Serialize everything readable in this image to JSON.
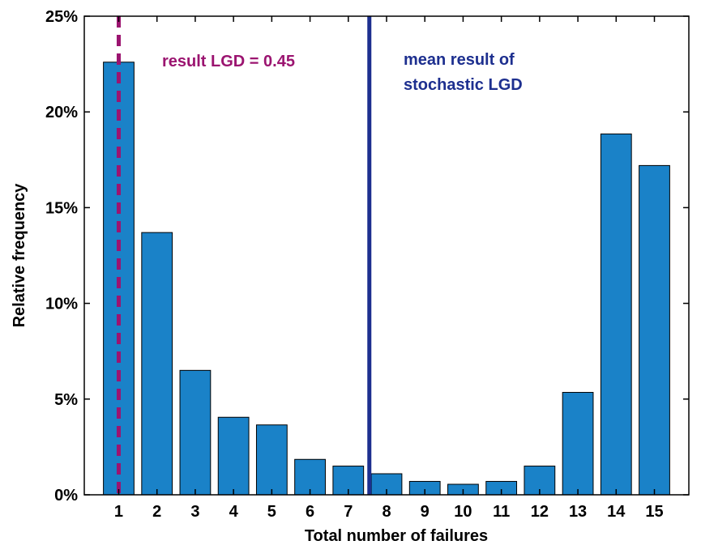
{
  "chart_data": {
    "type": "bar",
    "xlabel": "Total number of failures",
    "ylabel": "Relative frequency",
    "categories": [
      "1",
      "2",
      "3",
      "4",
      "5",
      "6",
      "7",
      "8",
      "9",
      "10",
      "11",
      "12",
      "13",
      "14",
      "15"
    ],
    "values": [
      22.6,
      13.7,
      6.5,
      4.05,
      3.65,
      1.85,
      1.5,
      1.1,
      0.7,
      0.55,
      0.7,
      1.5,
      5.35,
      18.85,
      17.2
    ],
    "y_unit": "%",
    "ylim": [
      0,
      25
    ],
    "yticks": [
      0,
      5,
      10,
      15,
      20,
      25
    ],
    "ytick_labels": [
      "0%",
      "5%",
      "10%",
      "15%",
      "20%",
      "25%"
    ],
    "xlim": [
      0.1,
      15.9
    ],
    "grid": false,
    "bar_color": "#1a82c8",
    "reference_lines": [
      {
        "x": 1,
        "style": "dashed",
        "color": "#9b1470",
        "label": "result LGD = 0.45"
      },
      {
        "x": 7.55,
        "style": "solid",
        "color": "#1d2f8f",
        "label_lines": [
          "mean result of",
          "stochastic LGD"
        ]
      }
    ]
  }
}
